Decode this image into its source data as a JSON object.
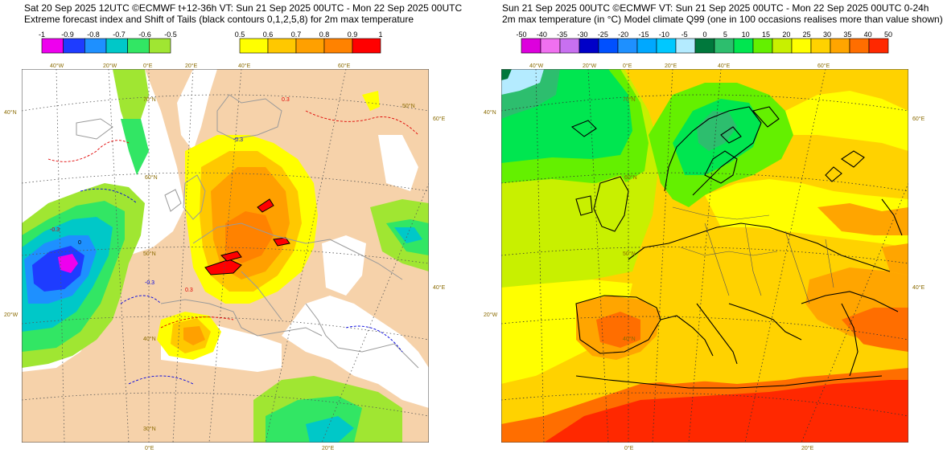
{
  "left": {
    "title_line1": "Sat 20 Sep 2025 12UTC ©ECMWF t+12-36h  VT: Sun 21 Sep 2025 00UTC - Mon 22 Sep 2025 00UTC",
    "title_line2": "Extreme forecast index and Shift of Tails (black contours 0,1,2,5,8) for 2m max temperature",
    "colorbar_neg": {
      "ticks": [
        "-1",
        "-0.9",
        "-0.8",
        "-0.7",
        "-0.6",
        "-0.5"
      ],
      "colors": [
        "#ee00ee",
        "#1e3cff",
        "#1e90ff",
        "#00c8c8",
        "#32e664",
        "#a0e632"
      ]
    },
    "colorbar_pos": {
      "ticks": [
        "0.5",
        "0.6",
        "0.7",
        "0.8",
        "0.9",
        "1"
      ],
      "colors": [
        "#ffff00",
        "#ffc800",
        "#ffa000",
        "#ff8200",
        "#ff0000"
      ]
    },
    "lat_labels": [
      "40°N",
      "20°W",
      "70°N",
      "60°N",
      "50°N",
      "40°N",
      "30°N"
    ],
    "lon_labels": [
      "40°W",
      "20°W",
      "0°E",
      "20°E",
      "40°E",
      "60°E",
      "50°N",
      "60°E",
      "40°E",
      "0°E",
      "20°E"
    ],
    "contour_labels": [
      "-0.3",
      "0.3",
      "0",
      "-0.3",
      "0.3",
      "-0.3"
    ]
  },
  "right": {
    "title_line1": "Sun 21 Sep 2025 00UTC ©ECMWF VT: Sun 21 Sep 2025 00UTC - Mon 22 Sep 2025 00UTC   0-24h",
    "title_line2": "2m max temperature (in °C)  Model climate Q99 (one in 100 occasions realises more than value shown)",
    "colorbar": {
      "ticks": [
        "-50",
        "-40",
        "-35",
        "-30",
        "-25",
        "-20",
        "-15",
        "-10",
        "-5",
        "0",
        "5",
        "10",
        "15",
        "20",
        "25",
        "30",
        "35",
        "40",
        "50"
      ],
      "colors": [
        "#dd00dd",
        "#f070f0",
        "#c870f0",
        "#0000c8",
        "#0050ff",
        "#1e90ff",
        "#00a8ff",
        "#00c8ff",
        "#b4ebff",
        "#00783c",
        "#2dbe6e",
        "#00e650",
        "#64f000",
        "#c8f000",
        "#ffff00",
        "#ffd200",
        "#ffa500",
        "#ff6e00",
        "#ff2800"
      ]
    },
    "lat_labels": [
      "40°N",
      "20°W",
      "70°N",
      "60°N",
      "50°N",
      "40°N"
    ],
    "lon_labels": [
      "40°W",
      "20°W",
      "0°E",
      "20°E",
      "40°E",
      "60°E",
      "60°E",
      "40°E",
      "0°E",
      "20°E"
    ]
  }
}
